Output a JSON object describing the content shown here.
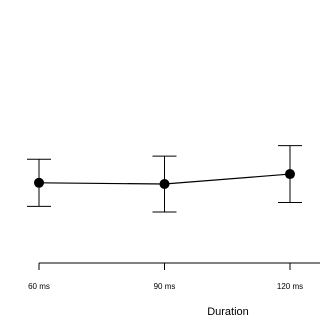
{
  "chart_data": {
    "type": "line",
    "x_label": "Duration",
    "categories": [
      "60 ms",
      "90 ms",
      "120 ms"
    ],
    "values": [
      33,
      32.5,
      36.6
    ],
    "errors": [
      9.7,
      11.5,
      11.7
    ],
    "color": "#000000",
    "ylim": [
      0,
      100
    ]
  }
}
